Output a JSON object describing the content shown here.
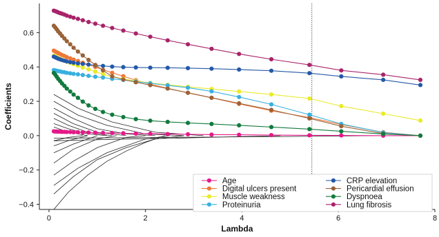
{
  "chart_data": {
    "type": "line",
    "xlabel": "Lambda",
    "ylabel": "Coefficients",
    "xlim": [
      -0.2,
      8.0
    ],
    "ylim": [
      -0.43,
      0.77
    ],
    "xticks": [
      0,
      2,
      4,
      6,
      8
    ],
    "yticks": [
      -0.4,
      -0.2,
      0.0,
      0.2,
      0.4,
      0.6
    ],
    "x_tick_labels": [
      "0",
      "2",
      "4",
      "6",
      "8"
    ],
    "y_tick_labels": [
      "−0.4",
      "−0.2",
      "0.0",
      "0.2",
      "0.4",
      "0.6"
    ],
    "grid": false,
    "legend_position": "bottom-right",
    "legend_columns": 2,
    "reference_line": {
      "orientation": "vertical",
      "x": 5.45,
      "style": "dotted"
    },
    "series": [
      {
        "name": "Age",
        "color": "#e5198a",
        "x": [
          0.1,
          0.13,
          0.16,
          0.19,
          0.23,
          0.27,
          0.32,
          0.37,
          0.44,
          0.51,
          0.6,
          0.7,
          0.82,
          0.96,
          1.12,
          1.31,
          1.54,
          1.8,
          2.1,
          2.46,
          2.88,
          3.37,
          3.94,
          4.61,
          5.4,
          6.06,
          6.93,
          7.7
        ],
        "y": [
          0.025,
          0.024,
          0.024,
          0.023,
          0.023,
          0.022,
          0.022,
          0.021,
          0.021,
          0.02,
          0.02,
          0.019,
          0.018,
          0.017,
          0.016,
          0.015,
          0.014,
          0.012,
          0.011,
          0.009,
          0.008,
          0.006,
          0.005,
          0.003,
          0.002,
          0.001,
          0.0,
          0.0
        ]
      },
      {
        "name": "Digital ulcers present",
        "color": "#f07838",
        "x": [
          0.1,
          0.13,
          0.16,
          0.19,
          0.23,
          0.27,
          0.32,
          0.37,
          0.44,
          0.51,
          0.6,
          0.7,
          0.82,
          0.96,
          1.12,
          1.31,
          1.54,
          1.8,
          2.1,
          2.46,
          2.88,
          3.37,
          3.94,
          4.61,
          5.4,
          6.06,
          6.93,
          7.7
        ],
        "y": [
          0.495,
          0.49,
          0.486,
          0.481,
          0.476,
          0.47,
          0.464,
          0.457,
          0.45,
          0.443,
          0.435,
          0.425,
          0.414,
          0.4,
          0.384,
          0.366,
          0.346,
          0.323,
          0.3,
          0.276,
          0.249,
          0.22,
          0.185,
          0.145,
          0.105,
          0.065,
          0.02,
          0.0
        ]
      },
      {
        "name": "Muscle weakness",
        "color": "#eaea2a",
        "x": [
          0.1,
          0.13,
          0.16,
          0.19,
          0.23,
          0.27,
          0.32,
          0.37,
          0.44,
          0.51,
          0.6,
          0.7,
          0.82,
          0.96,
          1.12,
          1.31,
          1.54,
          1.8,
          2.1,
          2.46,
          2.88,
          3.37,
          3.94,
          4.61,
          5.4,
          6.06,
          6.93,
          7.7
        ],
        "y": [
          0.465,
          0.461,
          0.457,
          0.453,
          0.448,
          0.443,
          0.437,
          0.431,
          0.424,
          0.416,
          0.407,
          0.397,
          0.386,
          0.373,
          0.358,
          0.343,
          0.33,
          0.318,
          0.307,
          0.296,
          0.284,
          0.272,
          0.257,
          0.24,
          0.216,
          0.172,
          0.128,
          0.088
        ]
      },
      {
        "name": "Proteinuria",
        "color": "#38b0e0",
        "x": [
          0.1,
          0.13,
          0.16,
          0.19,
          0.23,
          0.27,
          0.32,
          0.37,
          0.44,
          0.51,
          0.6,
          0.7,
          0.82,
          0.96,
          1.12,
          1.31,
          1.54,
          1.8,
          2.1,
          2.46,
          2.88,
          3.37,
          3.94,
          4.61,
          5.4,
          6.06,
          6.93,
          7.7
        ],
        "y": [
          0.382,
          0.38,
          0.378,
          0.376,
          0.374,
          0.371,
          0.369,
          0.366,
          0.363,
          0.36,
          0.357,
          0.353,
          0.348,
          0.343,
          0.338,
          0.331,
          0.324,
          0.315,
          0.305,
          0.293,
          0.279,
          0.258,
          0.225,
          0.182,
          0.122,
          0.068,
          0.018,
          0.0
        ]
      },
      {
        "name": "CRP elevation",
        "color": "#2458a8",
        "x": [
          0.1,
          0.13,
          0.16,
          0.19,
          0.23,
          0.27,
          0.32,
          0.37,
          0.44,
          0.51,
          0.6,
          0.7,
          0.82,
          0.96,
          1.12,
          1.31,
          1.54,
          1.8,
          2.1,
          2.46,
          2.88,
          3.37,
          3.94,
          4.61,
          5.4,
          6.06,
          6.93,
          7.7
        ],
        "y": [
          0.46,
          0.456,
          0.452,
          0.448,
          0.444,
          0.44,
          0.436,
          0.432,
          0.428,
          0.425,
          0.421,
          0.418,
          0.414,
          0.41,
          0.406,
          0.402,
          0.399,
          0.397,
          0.396,
          0.395,
          0.393,
          0.39,
          0.385,
          0.378,
          0.364,
          0.345,
          0.325,
          0.295
        ]
      },
      {
        "name": "Pericardial effusion",
        "color": "#9a6238",
        "x": [
          0.1,
          0.13,
          0.16,
          0.19,
          0.23,
          0.27,
          0.32,
          0.37,
          0.44,
          0.51,
          0.6,
          0.7,
          0.82,
          0.96,
          1.12,
          1.31,
          1.54,
          1.8,
          2.1,
          2.46,
          2.88,
          3.37,
          3.94,
          4.61,
          5.4,
          6.06,
          6.93,
          7.7
        ],
        "y": [
          0.64,
          0.63,
          0.619,
          0.607,
          0.595,
          0.581,
          0.566,
          0.55,
          0.532,
          0.512,
          0.49,
          0.467,
          0.441,
          0.412,
          0.38,
          0.345,
          0.327,
          0.311,
          0.294,
          0.274,
          0.25,
          0.221,
          0.188,
          0.15,
          0.1,
          0.055,
          0.012,
          0.0
        ]
      },
      {
        "name": "Dyspnoea",
        "color": "#127a3e",
        "x": [
          0.1,
          0.13,
          0.16,
          0.19,
          0.23,
          0.27,
          0.32,
          0.37,
          0.44,
          0.51,
          0.6,
          0.7,
          0.82,
          0.96,
          1.12,
          1.31,
          1.54,
          1.8,
          2.1,
          2.46,
          2.88,
          3.37,
          3.94,
          4.61,
          5.4,
          6.06,
          6.93,
          7.7
        ],
        "y": [
          0.365,
          0.355,
          0.343,
          0.331,
          0.318,
          0.304,
          0.29,
          0.274,
          0.257,
          0.239,
          0.22,
          0.198,
          0.176,
          0.156,
          0.138,
          0.122,
          0.108,
          0.096,
          0.087,
          0.08,
          0.074,
          0.068,
          0.06,
          0.05,
          0.038,
          0.025,
          0.01,
          0.0
        ]
      },
      {
        "name": "Lung fibrosis",
        "color": "#a8246a",
        "x": [
          0.1,
          0.13,
          0.16,
          0.19,
          0.23,
          0.27,
          0.32,
          0.37,
          0.44,
          0.51,
          0.6,
          0.7,
          0.82,
          0.96,
          1.12,
          1.31,
          1.54,
          1.8,
          2.1,
          2.46,
          2.88,
          3.37,
          3.94,
          4.61,
          5.4,
          6.06,
          6.93,
          7.7
        ],
        "y": [
          0.728,
          0.725,
          0.722,
          0.718,
          0.714,
          0.71,
          0.705,
          0.699,
          0.693,
          0.687,
          0.68,
          0.672,
          0.662,
          0.652,
          0.64,
          0.627,
          0.612,
          0.595,
          0.576,
          0.555,
          0.532,
          0.506,
          0.476,
          0.445,
          0.412,
          0.38,
          0.355,
          0.325
        ]
      }
    ],
    "unlabeled_paths": [
      {
        "x": [
          0.1,
          0.6,
          1.3,
          2.2,
          3.2
        ],
        "y": [
          0.24,
          0.16,
          0.08,
          0.02,
          0.0
        ]
      },
      {
        "x": [
          0.1,
          0.6,
          1.2,
          2.0,
          2.8
        ],
        "y": [
          0.2,
          0.12,
          0.06,
          0.01,
          0.0
        ]
      },
      {
        "x": [
          0.1,
          0.5,
          1.0,
          1.6,
          2.2
        ],
        "y": [
          0.16,
          0.1,
          0.04,
          0.01,
          0.0
        ]
      },
      {
        "x": [
          0.1,
          0.5,
          1.0,
          1.6
        ],
        "y": [
          0.13,
          0.07,
          0.02,
          0.0
        ]
      },
      {
        "x": [
          0.1,
          0.4,
          0.8,
          1.3
        ],
        "y": [
          0.1,
          0.06,
          0.02,
          0.0
        ]
      },
      {
        "x": [
          0.1,
          0.4,
          0.8,
          1.2
        ],
        "y": [
          0.07,
          0.04,
          0.01,
          0.0
        ]
      },
      {
        "x": [
          0.1,
          0.4,
          0.8
        ],
        "y": [
          0.05,
          0.02,
          0.0
        ]
      },
      {
        "x": [
          0.1,
          0.4,
          0.7
        ],
        "y": [
          -0.03,
          -0.01,
          0.0
        ]
      },
      {
        "x": [
          0.1,
          0.4,
          0.8
        ],
        "y": [
          -0.06,
          -0.03,
          0.0
        ]
      },
      {
        "x": [
          0.1,
          0.5,
          1.0
        ],
        "y": [
          -0.1,
          -0.05,
          0.0
        ]
      },
      {
        "x": [
          0.1,
          0.5,
          1.0,
          1.4
        ],
        "y": [
          -0.16,
          -0.08,
          -0.02,
          0.0
        ]
      },
      {
        "x": [
          0.1,
          0.5,
          1.0,
          1.6,
          2.0
        ],
        "y": [
          -0.23,
          -0.15,
          -0.07,
          -0.01,
          0.0
        ]
      },
      {
        "x": [
          0.1,
          0.6,
          1.2,
          2.0,
          2.5
        ],
        "y": [
          -0.29,
          -0.19,
          -0.1,
          -0.02,
          0.0
        ]
      },
      {
        "x": [
          0.1,
          0.5,
          1.0,
          1.6,
          2.2,
          2.8
        ],
        "y": [
          -0.34,
          -0.24,
          -0.14,
          -0.07,
          -0.02,
          0.0
        ]
      },
      {
        "x": [
          0.1,
          0.4,
          0.8,
          1.2,
          1.6,
          2.0,
          2.4
        ],
        "y": [
          -0.43,
          -0.33,
          -0.23,
          -0.15,
          -0.09,
          -0.04,
          0.0
        ]
      },
      {
        "x": [
          0.1,
          0.8,
          1.6,
          2.6,
          3.6,
          4.8
        ],
        "y": [
          -0.03,
          -0.025,
          -0.02,
          -0.015,
          -0.008,
          0.0
        ]
      },
      {
        "x": [
          0.1,
          1.0,
          2.0,
          3.0,
          4.0,
          5.0,
          6.0,
          6.9
        ],
        "y": [
          -0.015,
          -0.013,
          -0.011,
          -0.009,
          -0.007,
          -0.005,
          -0.002,
          0.0
        ]
      }
    ]
  }
}
